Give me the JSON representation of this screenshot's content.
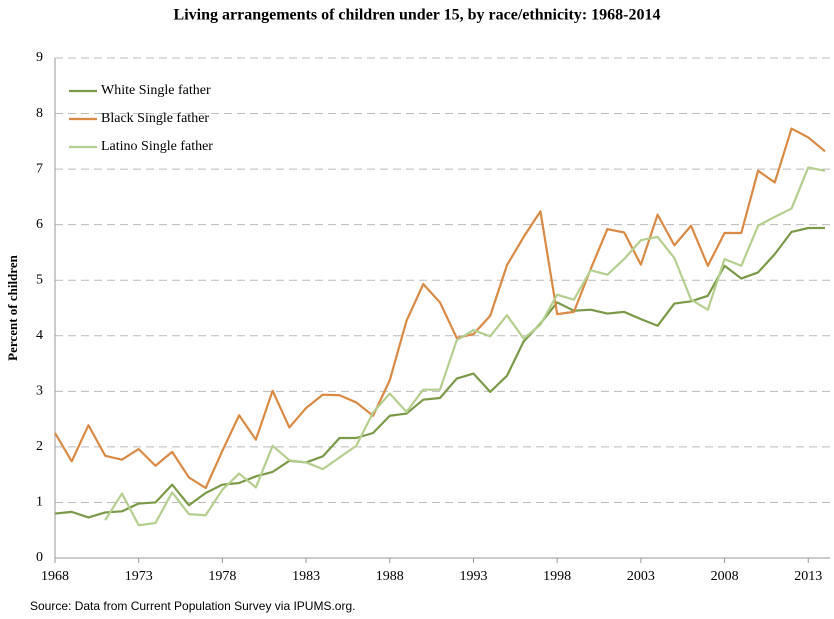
{
  "chart_data": {
    "type": "line",
    "title": "Living arrangements of children under 15, by race/ethnicity: 1968-2014",
    "y_label": "Percent of children",
    "source": "Source: Data from Current Population Survey via IPUMS.org.",
    "x": [
      1968,
      1969,
      1970,
      1971,
      1972,
      1973,
      1974,
      1975,
      1976,
      1977,
      1978,
      1979,
      1980,
      1981,
      1982,
      1983,
      1984,
      1985,
      1986,
      1987,
      1988,
      1989,
      1990,
      1991,
      1992,
      1993,
      1994,
      1995,
      1996,
      1997,
      1998,
      1999,
      2000,
      2001,
      2002,
      2003,
      2004,
      2005,
      2006,
      2007,
      2008,
      2009,
      2010,
      2011,
      2012,
      2013,
      2014
    ],
    "series": [
      {
        "name": "White Single father",
        "color": "#7a9a48",
        "values": [
          0.8,
          0.83,
          0.73,
          0.82,
          0.84,
          0.98,
          1.0,
          1.32,
          0.95,
          1.17,
          1.32,
          1.35,
          1.47,
          1.55,
          1.75,
          1.72,
          1.83,
          2.16,
          2.16,
          2.25,
          2.56,
          2.6,
          2.85,
          2.88,
          3.23,
          3.32,
          2.99,
          3.28,
          3.9,
          4.22,
          4.6,
          4.45,
          4.47,
          4.4,
          4.43,
          4.3,
          4.18,
          4.58,
          4.62,
          4.72,
          5.26,
          5.03,
          5.14,
          5.47,
          5.87,
          5.94,
          5.94
        ]
      },
      {
        "name": "Black Single father",
        "color": "#d98a45",
        "values": [
          2.25,
          1.74,
          2.39,
          1.84,
          1.77,
          1.96,
          1.66,
          1.91,
          1.45,
          1.26,
          1.93,
          2.57,
          2.13,
          3.01,
          2.35,
          2.7,
          2.94,
          2.93,
          2.8,
          2.56,
          3.2,
          4.27,
          4.93,
          4.6,
          3.96,
          4.03,
          4.36,
          5.27,
          5.78,
          6.24,
          4.39,
          4.43,
          5.2,
          5.92,
          5.86,
          5.28,
          6.18,
          5.63,
          5.98,
          5.26,
          5.85,
          5.85,
          6.97,
          6.76,
          7.73,
          7.57,
          7.32
        ]
      },
      {
        "name": "Latino Single father",
        "color": "#b5cf8f",
        "values": [
          null,
          null,
          null,
          0.68,
          1.16,
          0.59,
          0.63,
          1.18,
          0.79,
          0.77,
          1.23,
          1.52,
          1.27,
          2.02,
          1.76,
          1.72,
          1.6,
          1.81,
          2.02,
          2.62,
          2.96,
          2.63,
          3.03,
          3.03,
          3.92,
          4.1,
          3.99,
          4.37,
          3.95,
          4.2,
          4.74,
          4.65,
          5.18,
          5.1,
          5.38,
          5.72,
          5.78,
          5.4,
          4.65,
          4.47,
          5.38,
          5.26,
          5.98,
          6.14,
          6.29,
          7.03,
          6.97
        ]
      }
    ],
    "xlim": [
      1968,
      2014
    ],
    "xticks": [
      1968,
      1973,
      1978,
      1983,
      1988,
      1993,
      1998,
      2003,
      2008,
      2013
    ],
    "ylim": [
      0,
      9
    ],
    "yticks": [
      0,
      1,
      2,
      3,
      4,
      5,
      6,
      7,
      8,
      9
    ],
    "grid": true,
    "legend": "upper left"
  }
}
